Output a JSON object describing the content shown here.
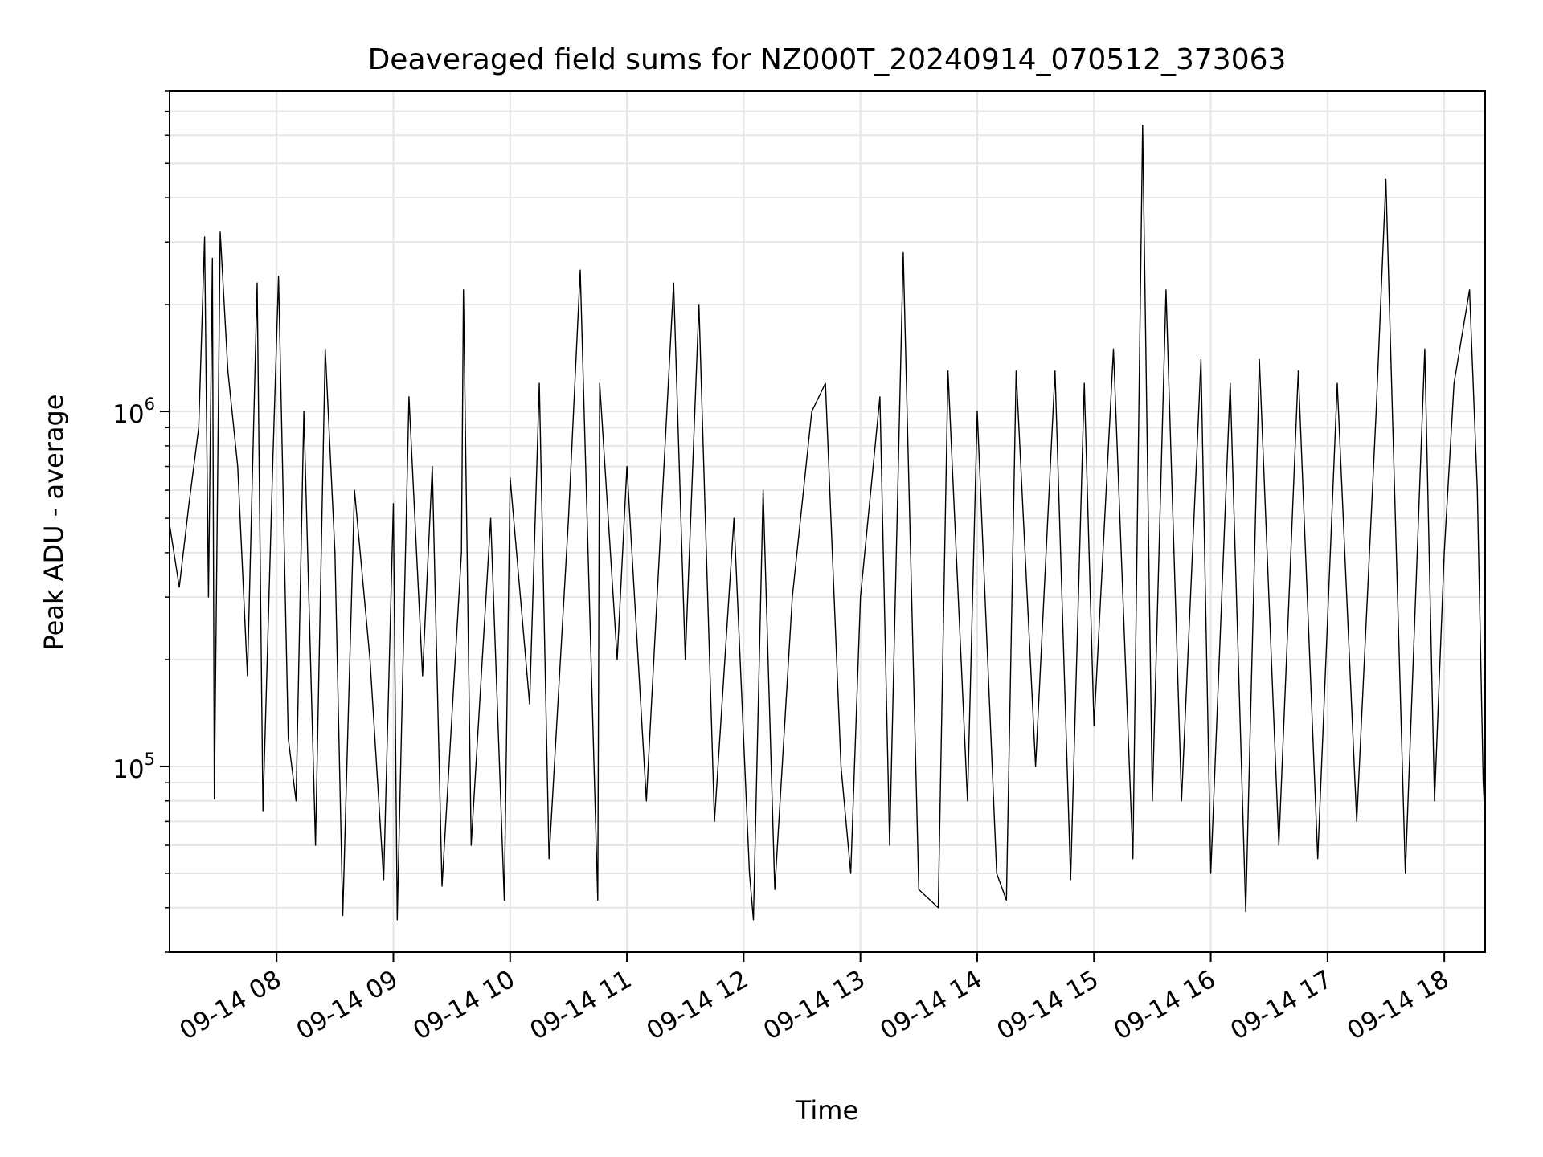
{
  "chart_data": {
    "type": "line",
    "title": "Deaveraged field sums for NZ000T_20240914_070512_373063",
    "xlabel": "Time",
    "ylabel": "Peak ADU - average",
    "x_type": "datetime",
    "x_range": [
      "2024-09-14 07:05",
      "2024-09-14 18:21"
    ],
    "x_ticks": [
      {
        "time": "2024-09-14 08:00",
        "label": "09-14 08"
      },
      {
        "time": "2024-09-14 09:00",
        "label": "09-14 09"
      },
      {
        "time": "2024-09-14 10:00",
        "label": "09-14 10"
      },
      {
        "time": "2024-09-14 11:00",
        "label": "09-14 11"
      },
      {
        "time": "2024-09-14 12:00",
        "label": "09-14 12"
      },
      {
        "time": "2024-09-14 13:00",
        "label": "09-14 13"
      },
      {
        "time": "2024-09-14 14:00",
        "label": "09-14 14"
      },
      {
        "time": "2024-09-14 15:00",
        "label": "09-14 15"
      },
      {
        "time": "2024-09-14 16:00",
        "label": "09-14 16"
      },
      {
        "time": "2024-09-14 17:00",
        "label": "09-14 17"
      },
      {
        "time": "2024-09-14 18:00",
        "label": "09-14 18"
      }
    ],
    "y_scale": "log",
    "y_range": [
      30000,
      8000000
    ],
    "y_ticks": [
      {
        "value": 100000,
        "base": "10",
        "exp": "5"
      },
      {
        "value": 1000000,
        "base": "10",
        "exp": "6"
      }
    ],
    "grid": true,
    "line_color": "#000000",
    "grid_color": "#e6e6e6",
    "series": [
      {
        "points": [
          [
            "2024-09-14 07:05",
            480000
          ],
          [
            "2024-09-14 07:10",
            320000
          ],
          [
            "2024-09-14 07:15",
            550000
          ],
          [
            "2024-09-14 07:20",
            900000
          ],
          [
            "2024-09-14 07:23",
            3100000
          ],
          [
            "2024-09-14 07:25",
            300000
          ],
          [
            "2024-09-14 07:27",
            2700000
          ],
          [
            "2024-09-14 07:28",
            81000
          ],
          [
            "2024-09-14 07:31",
            3200000
          ],
          [
            "2024-09-14 07:35",
            1300000
          ],
          [
            "2024-09-14 07:40",
            700000
          ],
          [
            "2024-09-14 07:45",
            180000
          ],
          [
            "2024-09-14 07:50",
            2300000
          ],
          [
            "2024-09-14 07:53",
            75000
          ],
          [
            "2024-09-14 07:58",
            700000
          ],
          [
            "2024-09-14 08:01",
            2400000
          ],
          [
            "2024-09-14 08:06",
            120000
          ],
          [
            "2024-09-14 08:10",
            80000
          ],
          [
            "2024-09-14 08:14",
            1000000
          ],
          [
            "2024-09-14 08:20",
            60000
          ],
          [
            "2024-09-14 08:25",
            1500000
          ],
          [
            "2024-09-14 08:30",
            400000
          ],
          [
            "2024-09-14 08:34",
            38000
          ],
          [
            "2024-09-14 08:40",
            600000
          ],
          [
            "2024-09-14 08:48",
            200000
          ],
          [
            "2024-09-14 08:55",
            48000
          ],
          [
            "2024-09-14 09:00",
            550000
          ],
          [
            "2024-09-14 09:02",
            37000
          ],
          [
            "2024-09-14 09:08",
            1100000
          ],
          [
            "2024-09-14 09:15",
            180000
          ],
          [
            "2024-09-14 09:20",
            700000
          ],
          [
            "2024-09-14 09:25",
            46000
          ],
          [
            "2024-09-14 09:35",
            400000
          ],
          [
            "2024-09-14 09:36",
            2200000
          ],
          [
            "2024-09-14 09:40",
            60000
          ],
          [
            "2024-09-14 09:50",
            500000
          ],
          [
            "2024-09-14 09:57",
            42000
          ],
          [
            "2024-09-14 10:00",
            650000
          ],
          [
            "2024-09-14 10:10",
            150000
          ],
          [
            "2024-09-14 10:15",
            1200000
          ],
          [
            "2024-09-14 10:20",
            55000
          ],
          [
            "2024-09-14 10:30",
            500000
          ],
          [
            "2024-09-14 10:36",
            2500000
          ],
          [
            "2024-09-14 10:45",
            42000
          ],
          [
            "2024-09-14 10:46",
            1200000
          ],
          [
            "2024-09-14 10:55",
            200000
          ],
          [
            "2024-09-14 11:00",
            700000
          ],
          [
            "2024-09-14 11:10",
            80000
          ],
          [
            "2024-09-14 11:24",
            2300000
          ],
          [
            "2024-09-14 11:30",
            200000
          ],
          [
            "2024-09-14 11:37",
            2000000
          ],
          [
            "2024-09-14 11:45",
            70000
          ],
          [
            "2024-09-14 11:55",
            500000
          ],
          [
            "2024-09-14 12:03",
            50000
          ],
          [
            "2024-09-14 12:05",
            37000
          ],
          [
            "2024-09-14 12:10",
            600000
          ],
          [
            "2024-09-14 12:16",
            45000
          ],
          [
            "2024-09-14 12:25",
            300000
          ],
          [
            "2024-09-14 12:35",
            1000000
          ],
          [
            "2024-09-14 12:42",
            1200000
          ],
          [
            "2024-09-14 12:50",
            100000
          ],
          [
            "2024-09-14 12:55",
            50000
          ],
          [
            "2024-09-14 13:00",
            300000
          ],
          [
            "2024-09-14 13:10",
            1100000
          ],
          [
            "2024-09-14 13:15",
            60000
          ],
          [
            "2024-09-14 13:22",
            2800000
          ],
          [
            "2024-09-14 13:30",
            45000
          ],
          [
            "2024-09-14 13:40",
            40000
          ],
          [
            "2024-09-14 13:45",
            1300000
          ],
          [
            "2024-09-14 13:55",
            80000
          ],
          [
            "2024-09-14 14:00",
            1000000
          ],
          [
            "2024-09-14 14:10",
            50000
          ],
          [
            "2024-09-14 14:15",
            42000
          ],
          [
            "2024-09-14 14:20",
            1300000
          ],
          [
            "2024-09-14 14:30",
            100000
          ],
          [
            "2024-09-14 14:40",
            1300000
          ],
          [
            "2024-09-14 14:48",
            48000
          ],
          [
            "2024-09-14 14:55",
            1200000
          ],
          [
            "2024-09-14 15:00",
            130000
          ],
          [
            "2024-09-14 15:10",
            1500000
          ],
          [
            "2024-09-14 15:20",
            55000
          ],
          [
            "2024-09-14 15:25",
            6400000
          ],
          [
            "2024-09-14 15:30",
            80000
          ],
          [
            "2024-09-14 15:37",
            2200000
          ],
          [
            "2024-09-14 15:45",
            80000
          ],
          [
            "2024-09-14 15:55",
            1400000
          ],
          [
            "2024-09-14 16:00",
            50000
          ],
          [
            "2024-09-14 16:10",
            1200000
          ],
          [
            "2024-09-14 16:18",
            39000
          ],
          [
            "2024-09-14 16:25",
            1400000
          ],
          [
            "2024-09-14 16:35",
            60000
          ],
          [
            "2024-09-14 16:45",
            1300000
          ],
          [
            "2024-09-14 16:55",
            55000
          ],
          [
            "2024-09-14 17:05",
            1200000
          ],
          [
            "2024-09-14 17:15",
            70000
          ],
          [
            "2024-09-14 17:25",
            1000000
          ],
          [
            "2024-09-14 17:30",
            4500000
          ],
          [
            "2024-09-14 17:40",
            50000
          ],
          [
            "2024-09-14 17:50",
            1500000
          ],
          [
            "2024-09-14 17:55",
            80000
          ],
          [
            "2024-09-14 18:00",
            400000
          ],
          [
            "2024-09-14 18:05",
            1200000
          ],
          [
            "2024-09-14 18:13",
            2200000
          ],
          [
            "2024-09-14 18:17",
            600000
          ],
          [
            "2024-09-14 18:20",
            90000
          ],
          [
            "2024-09-14 18:21",
            70000
          ]
        ]
      }
    ]
  }
}
